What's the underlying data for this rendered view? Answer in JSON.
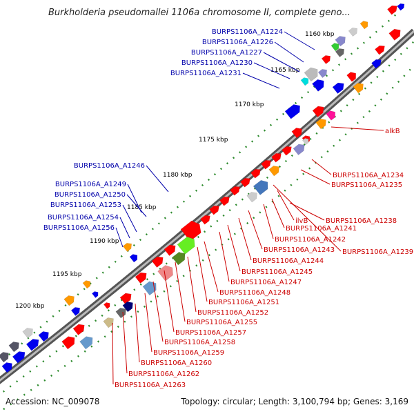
{
  "title": "Burkholderia pseudomallei 1106a chromosome II, complete geno...",
  "footer": {
    "accession": "Accession: NC_009078",
    "summary": "Topology: circular; Length: 3,100,794 bp; Genes: 3,169"
  },
  "colors": {
    "forward_label": "#0000aa",
    "reverse_label": "#cc0000",
    "backbone": "#777777",
    "tick": "#2e8b2e"
  },
  "kbp_ticks": [
    "1160 kbp",
    "1165 kbp",
    "1170 kbp",
    "1175 kbp",
    "1180 kbp",
    "1185 kbp",
    "1190 kbp",
    "1195 kbp",
    "1200 kbp"
  ],
  "forward_labels": [
    "BURPS1106A_A1224",
    "BURPS1106A_A1226",
    "BURPS1106A_A1227",
    "BURPS1106A_A1230",
    "BURPS1106A_A1231",
    "BURPS1106A_A1246",
    "BURPS1106A_A1249",
    "BURPS1106A_A1250",
    "BURPS1106A_A1253",
    "BURPS1106A_A1254",
    "BURPS1106A_A1256"
  ],
  "reverse_labels": [
    "alkB",
    "BURPS1106A_A1234",
    "BURPS1106A_A1235",
    "BURPS1106A_A1238",
    "ilvB",
    "BURPS1106A_A1241",
    "BURPS1106A_A1242",
    "BURPS1106A_A1239",
    "BURPS1106A_A1243",
    "BURPS1106A_A1244",
    "BURPS1106A_A1245",
    "BURPS1106A_A1247",
    "BURPS1106A_A1248",
    "BURPS1106A_A1251",
    "BURPS1106A_A1252",
    "BURPS1106A_A1255",
    "BURPS1106A_A1257",
    "BURPS1106A_A1258",
    "BURPS1106A_A1259",
    "BURPS1106A_A1260",
    "BURPS1106A_A1262",
    "BURPS1106A_A1263"
  ]
}
